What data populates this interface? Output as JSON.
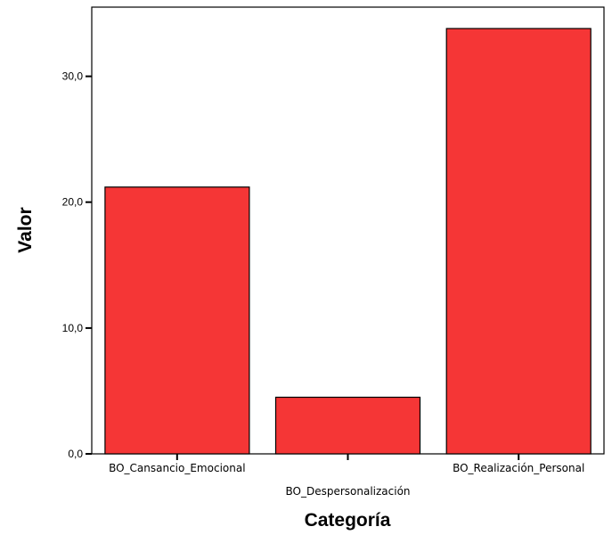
{
  "chart_data": {
    "type": "bar",
    "categories": [
      "BO_Cansancio_Emocional",
      "BO_Despersonalización",
      "BO_Realización_Personal"
    ],
    "values": [
      21.2,
      4.5,
      33.8
    ],
    "title": "",
    "xlabel": "Categoría",
    "ylabel": "Valor",
    "ylim": [
      0,
      35.5
    ],
    "yticks": [
      0,
      10,
      20,
      30
    ],
    "ytick_labels": [
      "0,0",
      "10,0",
      "20,0",
      "30,0"
    ],
    "grid": false,
    "legend": "none",
    "bar_color": "#f53636",
    "bar_edge_color": "#000000"
  }
}
